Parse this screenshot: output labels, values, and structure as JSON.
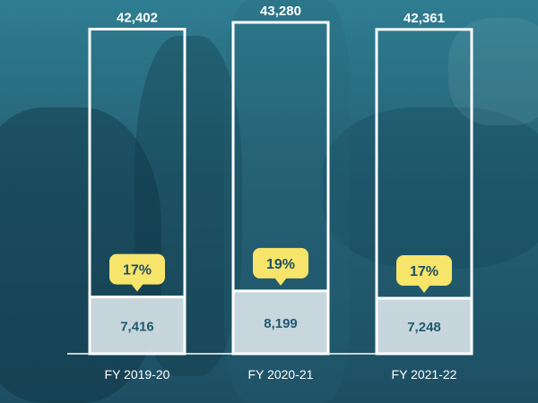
{
  "chart_data": {
    "type": "bar",
    "categories": [
      "FY 2019-20",
      "FY 2020-21",
      "FY 2021-22"
    ],
    "totals": [
      42402,
      43280,
      42361
    ],
    "total_labels": [
      "42,402",
      "43,280",
      "42,361"
    ],
    "subset_values": [
      7416,
      8199,
      7248
    ],
    "subset_labels": [
      "7,416",
      "8,199",
      "7,248"
    ],
    "percent_labels": [
      "17%",
      "19%",
      "17%"
    ],
    "percents": [
      17,
      19,
      17
    ],
    "colors": {
      "outline": "#ffffff",
      "subset_fill": "#d6e2e7",
      "callout_fill": "#f7e46a",
      "callout_text": "#1f4f63",
      "value_text": "#1f5a70",
      "background": "#2f7d91"
    },
    "grid": false
  }
}
